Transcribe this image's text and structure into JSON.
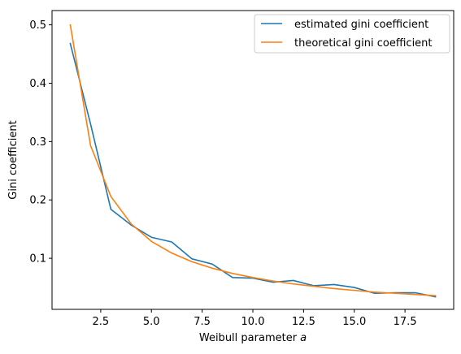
{
  "chart_data": {
    "type": "line",
    "xlabel_prefix": "Weibull parameter ",
    "xlabel_var": "a",
    "ylabel": "Gini coefficient",
    "xlim": [
      0.1,
      19.9
    ],
    "ylim": [
      0.0125,
      0.5245
    ],
    "xticks": [
      2.5,
      5.0,
      7.5,
      10.0,
      12.5,
      15.0,
      17.5
    ],
    "xtick_labels": [
      "2.5",
      "5.0",
      "7.5",
      "10.0",
      "12.5",
      "15.0",
      "17.5"
    ],
    "yticks": [
      0.1,
      0.2,
      0.3,
      0.4,
      0.5
    ],
    "ytick_labels": [
      "0.1",
      "0.2",
      "0.3",
      "0.4",
      "0.5"
    ],
    "grid": false,
    "legend_position": "upper right",
    "x": [
      1,
      2,
      3,
      4,
      5,
      6,
      7,
      8,
      9,
      10,
      11,
      12,
      13,
      14,
      15,
      16,
      17,
      18,
      19
    ],
    "series": [
      {
        "name": "estimated gini coefficient",
        "color": "#1f77b4",
        "values": [
          0.468,
          0.33,
          0.184,
          0.157,
          0.136,
          0.128,
          0.099,
          0.09,
          0.067,
          0.066,
          0.059,
          0.062,
          0.053,
          0.055,
          0.05,
          0.04,
          0.041,
          0.041,
          0.034
        ]
      },
      {
        "name": "theoretical gini coefficient",
        "color": "#ff7f0e",
        "values": [
          0.5,
          0.293,
          0.206,
          0.159,
          0.129,
          0.109,
          0.094,
          0.083,
          0.074,
          0.067,
          0.061,
          0.056,
          0.052,
          0.048,
          0.045,
          0.042,
          0.04,
          0.038,
          0.036
        ]
      }
    ]
  }
}
